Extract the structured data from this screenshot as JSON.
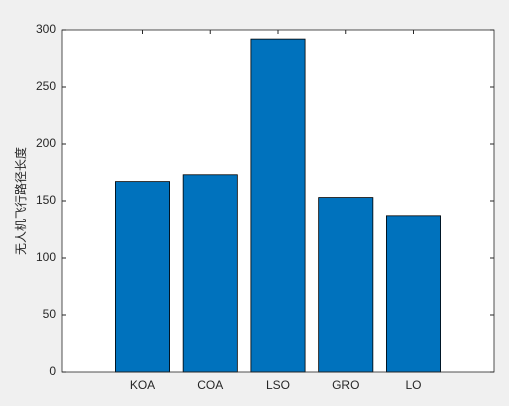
{
  "chart_data": {
    "type": "bar",
    "y_label": "无人机飞行路径长度",
    "categories": [
      "KOA",
      "COA",
      "LSO",
      "GRO",
      "LO"
    ],
    "values": [
      167,
      173,
      292,
      153,
      137
    ],
    "color": "#0072bd",
    "ylim": [
      0,
      300
    ],
    "yticks": [
      0,
      50,
      100,
      150,
      200,
      250,
      300
    ]
  }
}
